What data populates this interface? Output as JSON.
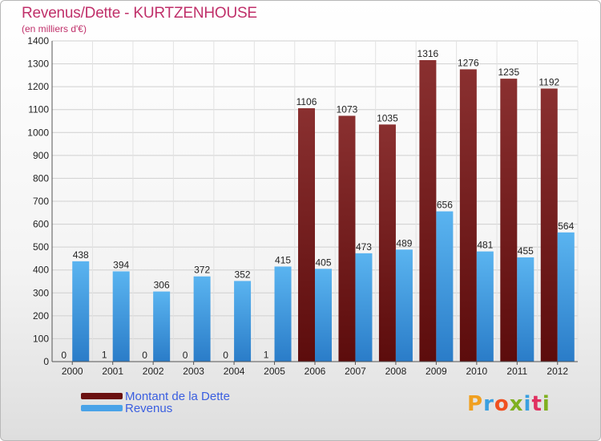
{
  "header": {
    "title": "Revenus/Dette - KURTZENHOUSE",
    "subtitle": "(en milliers d'€)"
  },
  "logo": {
    "text": "Proxiti",
    "colors": [
      "#f0a020",
      "#3aa0e0",
      "#f05020",
      "#80b020",
      "#3aa0e0",
      "#e03060",
      "#80b020"
    ]
  },
  "chart_data": {
    "type": "bar",
    "title": "Revenus/Dette - KURTZENHOUSE",
    "subtitle": "(en milliers d'€)",
    "categories": [
      "2000",
      "2001",
      "2002",
      "2003",
      "2004",
      "2005",
      "2006",
      "2007",
      "2008",
      "2009",
      "2010",
      "2011",
      "2012"
    ],
    "series": [
      {
        "name": "Montant de la Dette",
        "color": "#7a1f1f",
        "values": [
          0,
          1,
          0,
          0,
          0,
          1,
          1106,
          1073,
          1035,
          1316,
          1276,
          1235,
          1192
        ]
      },
      {
        "name": "Revenus",
        "color": "#4aa3e8",
        "values": [
          438,
          394,
          306,
          372,
          352,
          415,
          405,
          473,
          489,
          656,
          481,
          455,
          564
        ]
      }
    ],
    "ylim": [
      0,
      1400
    ],
    "yticks": [
      0,
      100,
      200,
      300,
      400,
      500,
      600,
      700,
      800,
      900,
      1000,
      1100,
      1200,
      1300,
      1400
    ],
    "grid": true,
    "legend": "bottom-left"
  }
}
